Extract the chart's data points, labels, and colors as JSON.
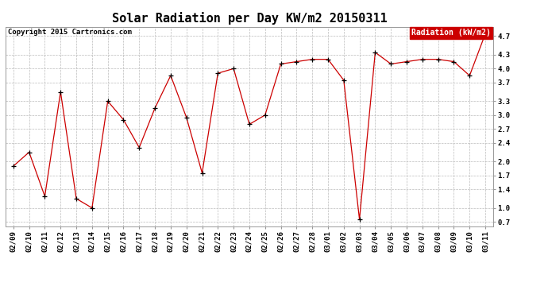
{
  "title": "Solar Radiation per Day KW/m2 20150311",
  "copyright": "Copyright 2015 Cartronics.com",
  "legend_label": "Radiation (kW/m2)",
  "x_labels": [
    "02/09",
    "02/10",
    "02/11",
    "02/12",
    "02/13",
    "02/14",
    "02/15",
    "02/16",
    "02/17",
    "02/18",
    "02/19",
    "02/20",
    "02/21",
    "02/22",
    "02/23",
    "02/24",
    "02/25",
    "02/26",
    "02/27",
    "02/28",
    "03/01",
    "03/02",
    "03/03",
    "03/04",
    "03/05",
    "03/06",
    "03/07",
    "03/08",
    "03/09",
    "03/10",
    "03/11"
  ],
  "y_values": [
    1.9,
    2.2,
    1.25,
    3.5,
    1.2,
    1.0,
    3.3,
    2.9,
    2.3,
    3.15,
    3.85,
    2.95,
    1.75,
    3.9,
    4.0,
    2.8,
    3.0,
    4.1,
    4.15,
    4.2,
    4.2,
    3.75,
    0.75,
    4.35,
    4.1,
    4.15,
    4.2,
    4.2,
    4.15,
    3.85,
    4.75
  ],
  "line_color": "#cc0000",
  "marker_color": "#000000",
  "background_color": "#ffffff",
  "grid_color": "#bbbbbb",
  "legend_bg": "#cc0000",
  "legend_fg": "#ffffff",
  "ylim": [
    0.6,
    4.9
  ],
  "yticks": [
    0.7,
    1.0,
    1.4,
    1.7,
    2.0,
    2.4,
    2.7,
    3.0,
    3.3,
    3.7,
    4.0,
    4.3,
    4.7
  ],
  "title_fontsize": 11,
  "copyright_fontsize": 6.5,
  "tick_fontsize": 6.5,
  "legend_fontsize": 7
}
